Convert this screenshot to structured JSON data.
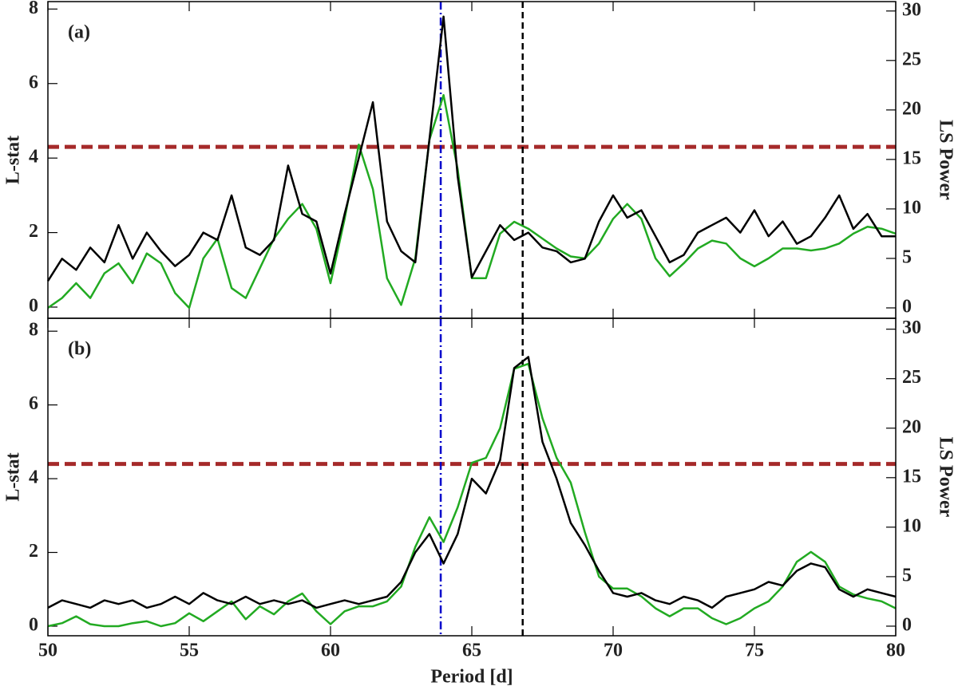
{
  "chart_data": [
    {
      "type": "line",
      "annotation": "(a)",
      "ylabel": "L-stat",
      "y2label": "LS Power",
      "xlim": [
        50,
        80
      ],
      "xticks": [
        50,
        55,
        60,
        65,
        70,
        75,
        80
      ],
      "ylim": [
        -0.3,
        8.2
      ],
      "yticks": [
        0,
        2,
        4,
        6,
        8
      ],
      "y2lim": [
        -1.05,
        30.95
      ],
      "y2ticks": [
        0,
        5,
        10,
        15,
        20,
        25,
        30
      ],
      "x": [
        50,
        50.5,
        51,
        51.5,
        52,
        52.5,
        53,
        53.5,
        54,
        54.5,
        55,
        55.5,
        56,
        56.5,
        57,
        57.5,
        58,
        58.5,
        59,
        59.5,
        60,
        60.5,
        61,
        61.5,
        62,
        62.5,
        63,
        63.5,
        64,
        64.5,
        65,
        65.5,
        66,
        66.5,
        67,
        67.5,
        68,
        68.5,
        69,
        69.5,
        70,
        70.5,
        71,
        71.5,
        72,
        72.5,
        73,
        73.5,
        74,
        74.5,
        75,
        75.5,
        76,
        76.5,
        77,
        77.5,
        78,
        78.5,
        79,
        79.5,
        80
      ],
      "series": [
        {
          "color": "#000000",
          "values": [
            0.7,
            1.3,
            1.0,
            1.6,
            1.2,
            2.2,
            1.3,
            2.0,
            1.5,
            1.1,
            1.4,
            2.0,
            1.8,
            3.0,
            1.6,
            1.4,
            1.8,
            3.8,
            2.5,
            2.3,
            0.9,
            2.5,
            4.0,
            5.5,
            2.3,
            1.5,
            1.2,
            4.5,
            7.8,
            3.5,
            0.8,
            1.5,
            2.2,
            1.8,
            2.0,
            1.6,
            1.5,
            1.2,
            1.3,
            2.3,
            3.0,
            2.4,
            2.6,
            1.9,
            1.2,
            1.4,
            2.0,
            2.2,
            2.4,
            2.0,
            2.6,
            1.9,
            2.3,
            1.7,
            1.9,
            2.4,
            3.0,
            2.1,
            2.5,
            1.9,
            1.9
          ]
        },
        {
          "color": "#22aa22",
          "axis": "y2",
          "values": [
            0.0,
            1.0,
            2.5,
            1.0,
            3.5,
            4.5,
            2.5,
            5.5,
            4.5,
            1.5,
            0.0,
            5.0,
            7.0,
            2.0,
            1.0,
            4.0,
            7.0,
            9.0,
            10.5,
            8.0,
            2.5,
            9.0,
            16.5,
            12.0,
            3.0,
            0.3,
            5.0,
            17.0,
            21.5,
            14.0,
            3.0,
            3.0,
            7.5,
            8.7,
            8.0,
            7.0,
            6.0,
            5.2,
            5.0,
            6.5,
            9.0,
            10.5,
            9.0,
            5.0,
            3.2,
            4.5,
            6.0,
            6.8,
            6.5,
            5.0,
            4.2,
            5.0,
            6.0,
            6.0,
            5.8,
            6.0,
            6.5,
            7.5,
            8.2,
            8.0,
            7.5
          ]
        }
      ],
      "threshold": {
        "value": 4.3,
        "color": "#a52a2a"
      },
      "vlines": [
        {
          "x": 63.9,
          "color": "#0000cc",
          "style": "dashdot"
        },
        {
          "x": 66.8,
          "color": "#000000",
          "style": "dashed"
        }
      ]
    },
    {
      "type": "line",
      "annotation": "(b)",
      "ylabel": "L-stat",
      "y2label": "LS Power",
      "xlabel": "Period [d]",
      "xlim": [
        50,
        80
      ],
      "xticks": [
        50,
        55,
        60,
        65,
        70,
        75,
        80
      ],
      "ylim": [
        -0.26,
        8.35
      ],
      "yticks": [
        0,
        2,
        4,
        6,
        8
      ],
      "y2lim": [
        -0.97,
        31.1
      ],
      "y2ticks": [
        0,
        5,
        10,
        15,
        20,
        25,
        30
      ],
      "x": [
        50,
        50.5,
        51,
        51.5,
        52,
        52.5,
        53,
        53.5,
        54,
        54.5,
        55,
        55.5,
        56,
        56.5,
        57,
        57.5,
        58,
        58.5,
        59,
        59.5,
        60,
        60.5,
        61,
        61.5,
        62,
        62.5,
        63,
        63.5,
        64,
        64.5,
        65,
        65.5,
        66,
        66.5,
        67,
        67.5,
        68,
        68.5,
        69,
        69.5,
        70,
        70.5,
        71,
        71.5,
        72,
        72.5,
        73,
        73.5,
        74,
        74.5,
        75,
        75.5,
        76,
        76.5,
        77,
        77.5,
        78,
        78.5,
        79,
        79.5,
        80
      ],
      "series": [
        {
          "color": "#000000",
          "values": [
            0.5,
            0.7,
            0.6,
            0.5,
            0.7,
            0.6,
            0.7,
            0.5,
            0.6,
            0.8,
            0.6,
            0.9,
            0.7,
            0.6,
            0.8,
            0.6,
            0.7,
            0.6,
            0.7,
            0.5,
            0.6,
            0.7,
            0.6,
            0.7,
            0.8,
            1.2,
            2.0,
            2.5,
            1.7,
            2.5,
            4.0,
            3.6,
            4.5,
            7.0,
            7.3,
            5.0,
            4.0,
            2.8,
            2.2,
            1.5,
            0.9,
            0.8,
            0.9,
            0.7,
            0.6,
            0.8,
            0.7,
            0.5,
            0.8,
            0.9,
            1.0,
            1.2,
            1.1,
            1.5,
            1.7,
            1.6,
            1.0,
            0.8,
            1.0,
            0.9,
            0.8
          ]
        },
        {
          "color": "#22aa22",
          "axis": "y2",
          "values": [
            0,
            0.3,
            1.0,
            0.2,
            0,
            0,
            0.3,
            0.5,
            0,
            0.3,
            1.3,
            0.5,
            1.5,
            2.5,
            0.7,
            2.0,
            1.2,
            2.5,
            3.3,
            1.5,
            0.2,
            1.5,
            2.0,
            2.0,
            2.5,
            4.0,
            8.0,
            11.0,
            8.5,
            12,
            16.5,
            17,
            20,
            26,
            26.5,
            21,
            17,
            14.5,
            9.5,
            5.0,
            3.8,
            3.8,
            3.0,
            1.8,
            1.0,
            1.8,
            1.8,
            0.8,
            0.2,
            0.8,
            1.8,
            2.5,
            4.0,
            6.5,
            7.5,
            6.5,
            4.0,
            3.2,
            2.8,
            2.5,
            1.8
          ]
        }
      ],
      "threshold": {
        "value": 4.4,
        "color": "#a52a2a"
      },
      "vlines": [
        {
          "x": 63.9,
          "color": "#0000cc",
          "style": "dashdot"
        },
        {
          "x": 66.8,
          "color": "#000000",
          "style": "dashed"
        }
      ]
    }
  ]
}
